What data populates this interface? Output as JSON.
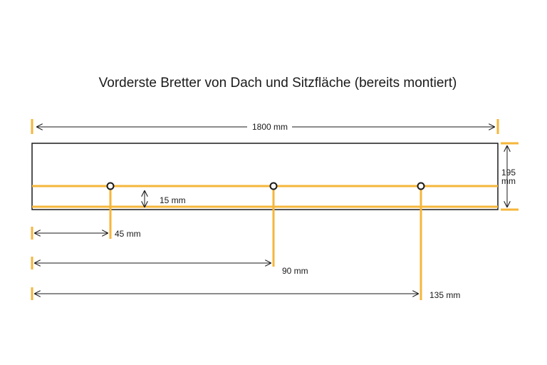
{
  "title": "Vorderste Bretter von Dach und Sitzfläche (bereits montiert)",
  "colors": {
    "accent": "#f5b63a",
    "line": "#1a1a1a",
    "background": "#ffffff"
  },
  "dimensions": {
    "length": "1800 mm",
    "height_value": "195",
    "height_unit": "mm",
    "offset": "15 mm",
    "hole_1": "45 mm",
    "hole_2": "90 mm",
    "hole_3": "135 mm"
  }
}
